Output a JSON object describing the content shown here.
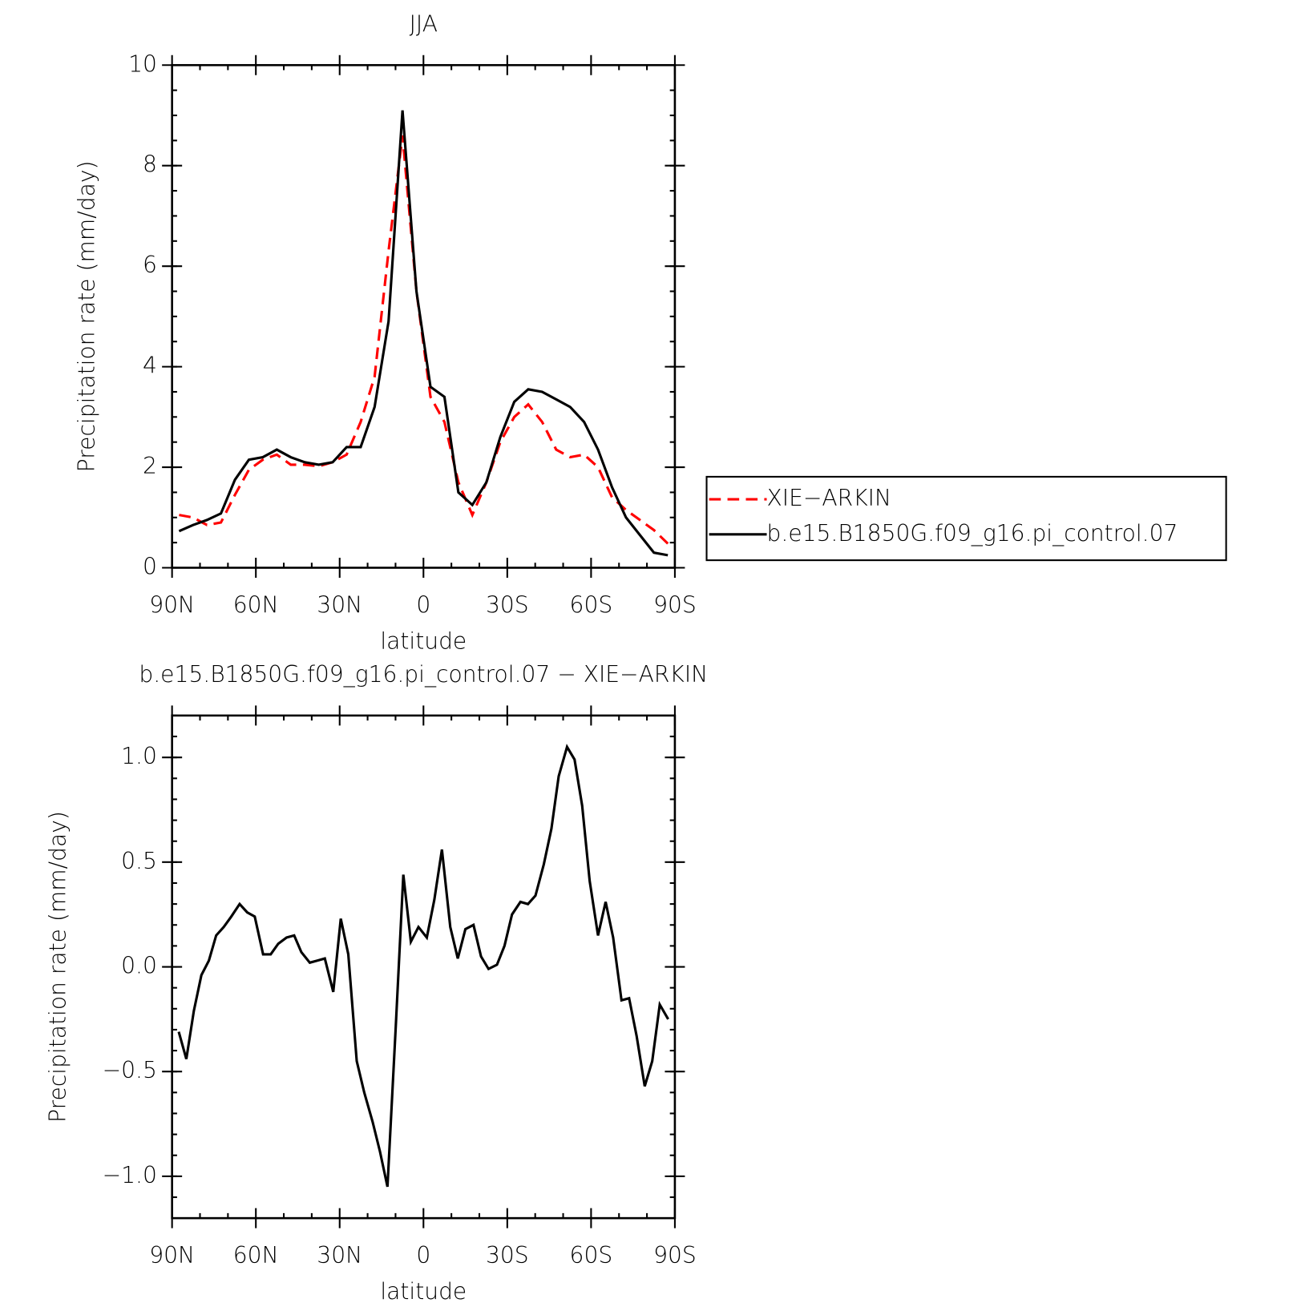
{
  "chart_data": [
    {
      "type": "line",
      "title": "JJA",
      "xlabel": "latitude",
      "ylabel": "Precipitation rate (mm/day)",
      "x": [
        87.5,
        82.5,
        77.5,
        72.5,
        67.5,
        62.5,
        57.5,
        52.5,
        47.5,
        42.5,
        37.5,
        32.5,
        27.5,
        22.5,
        17.5,
        12.5,
        7.5,
        2.5,
        -2.5,
        -7.5,
        -12.5,
        -17.5,
        -22.5,
        -27.5,
        -32.5,
        -37.5,
        -42.5,
        -47.5,
        -52.5,
        -57.5,
        -62.5,
        -67.5,
        -72.5,
        -77.5,
        -82.5,
        -87.5
      ],
      "series": [
        {
          "name": "XIE−ARKIN",
          "color": "#ff0000",
          "dashed": true,
          "values": [
            1.05,
            1.0,
            0.85,
            0.9,
            1.45,
            1.95,
            2.15,
            2.25,
            2.05,
            2.05,
            2.02,
            2.1,
            2.25,
            2.9,
            3.8,
            6.3,
            8.6,
            5.5,
            3.4,
            2.9,
            1.7,
            1.05,
            1.7,
            2.5,
            3.0,
            3.25,
            2.9,
            2.35,
            2.2,
            2.25,
            2.0,
            1.4,
            1.15,
            0.95,
            0.75,
            0.48
          ]
        },
        {
          "name": "b.e15.B1850G.f09_g16.pi_control.07",
          "color": "#000000",
          "dashed": false,
          "values": [
            0.73,
            0.85,
            0.95,
            1.08,
            1.75,
            2.15,
            2.2,
            2.35,
            2.2,
            2.1,
            2.05,
            2.1,
            2.4,
            2.4,
            3.2,
            4.9,
            9.1,
            5.5,
            3.6,
            3.4,
            1.5,
            1.25,
            1.7,
            2.6,
            3.3,
            3.55,
            3.5,
            3.35,
            3.2,
            2.9,
            2.35,
            1.6,
            1.0,
            0.65,
            0.3,
            0.25
          ]
        }
      ],
      "xlim": [
        90,
        -90
      ],
      "xticks": [
        {
          "value": 90,
          "label": "90N"
        },
        {
          "value": 60,
          "label": "60N"
        },
        {
          "value": 30,
          "label": "30N"
        },
        0,
        {
          "value": -30,
          "label": "30S"
        },
        {
          "value": -60,
          "label": "60S"
        },
        {
          "value": -90,
          "label": "90S"
        }
      ],
      "xminor": 3,
      "ylim": [
        0,
        10
      ],
      "yticks": [
        0,
        2,
        4,
        6,
        8,
        10
      ],
      "yminor": 4,
      "legend": "outside right"
    },
    {
      "type": "line",
      "title": "b.e15.B1850G.f09_g16.pi_control.07 − XIE−ARKIN",
      "xlabel": "latitude",
      "ylabel": "Precipitation rate (mm/day)",
      "x": [
        87.6,
        84.9,
        82.2,
        79.5,
        76.8,
        74.2,
        71.5,
        68.8,
        65.8,
        63.1,
        60.4,
        57.4,
        54.7,
        52.0,
        49.0,
        46.3,
        43.7,
        40.7,
        38.0,
        35.3,
        32.3,
        29.6,
        26.9,
        23.9,
        21.2,
        18.2,
        15.6,
        12.9,
        9.9,
        7.2,
        4.5,
        1.8,
        -1.2,
        -3.9,
        -6.6,
        -9.6,
        -12.3,
        -15.0,
        -17.9,
        -20.6,
        -23.3,
        -26.3,
        -29.0,
        -31.7,
        -34.7,
        -37.4,
        -40.1,
        -43.1,
        -45.8,
        -48.4,
        -51.4,
        -54.1,
        -56.8,
        -59.5,
        -62.5,
        -65.2,
        -67.9,
        -70.9,
        -73.6,
        -76.3,
        -79.2,
        -81.9,
        -84.6,
        -87.6
      ],
      "values": [
        -0.31,
        -0.44,
        -0.21,
        -0.04,
        0.03,
        0.15,
        0.19,
        0.24,
        0.3,
        0.26,
        0.24,
        0.06,
        0.06,
        0.11,
        0.14,
        0.15,
        0.07,
        0.02,
        0.03,
        0.04,
        -0.12,
        0.23,
        0.06,
        -0.45,
        -0.6,
        -0.74,
        -0.88,
        -1.05,
        -0.28,
        0.44,
        0.12,
        0.19,
        0.14,
        0.32,
        0.56,
        0.19,
        0.04,
        0.18,
        0.2,
        0.05,
        -0.01,
        0.01,
        0.1,
        0.25,
        0.31,
        0.3,
        0.34,
        0.49,
        0.66,
        0.91,
        1.05,
        0.99,
        0.77,
        0.41,
        0.15,
        0.31,
        0.14,
        -0.16,
        -0.15,
        -0.33,
        -0.57,
        -0.45,
        -0.18,
        -0.25
      ],
      "color": "#000000",
      "xlim": [
        90,
        -90
      ],
      "xticks": [
        {
          "value": 90,
          "label": "90N"
        },
        {
          "value": 60,
          "label": "60N"
        },
        {
          "value": 30,
          "label": "30N"
        },
        0,
        {
          "value": -30,
          "label": "30S"
        },
        {
          "value": -60,
          "label": "60S"
        },
        {
          "value": -90,
          "label": "90S"
        }
      ],
      "xminor": 3,
      "ylim": [
        -1.2,
        1.2
      ],
      "yticks": [
        {
          "value": -1.0,
          "label": "−1.0"
        },
        {
          "value": -0.5,
          "label": "−0.5"
        },
        {
          "value": 0.0,
          "label": "0.0"
        },
        {
          "value": 0.5,
          "label": "0.5"
        },
        {
          "value": 1.0,
          "label": "1.0"
        }
      ],
      "yminor": 5
    }
  ]
}
